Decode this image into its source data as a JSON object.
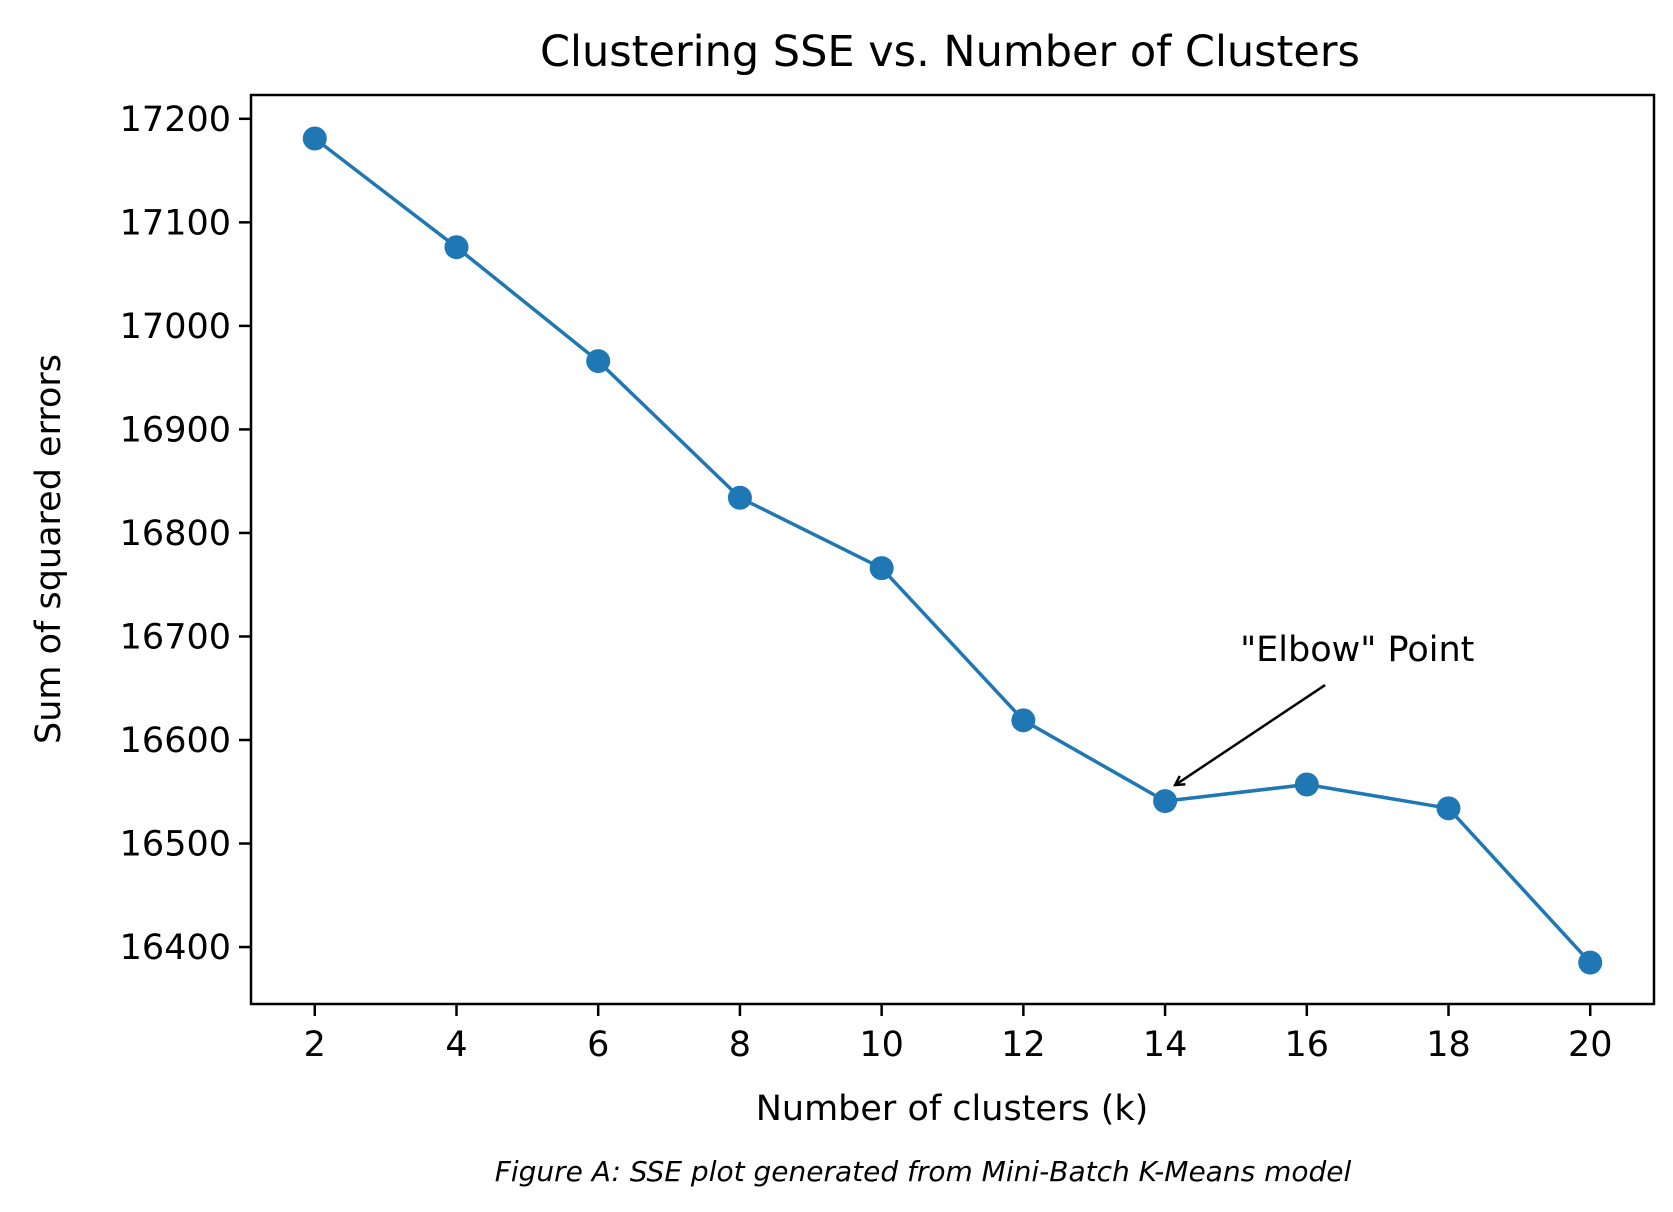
{
  "chart_data": {
    "type": "line",
    "title": "Clustering SSE vs. Number of Clusters",
    "xlabel": "Number of clusters (k)",
    "ylabel": "Sum of squared errors",
    "x": [
      2,
      4,
      6,
      8,
      10,
      12,
      14,
      16,
      18,
      20
    ],
    "series": [
      {
        "values": [
          17181,
          17076,
          16966,
          16834,
          16766,
          16619,
          16541,
          16557,
          16534,
          16385
        ],
        "color": "#1f77b4",
        "marker": "circle"
      }
    ],
    "xlim": [
      1.1,
      20.9
    ],
    "ylim": [
      16345,
      17223
    ],
    "xticks": [
      2,
      4,
      6,
      8,
      10,
      12,
      14,
      16,
      18,
      20
    ],
    "yticks": [
      16400,
      16500,
      16600,
      16700,
      16800,
      16900,
      17000,
      17100,
      17200
    ],
    "grid": false,
    "legend": "none",
    "annotation": {
      "text": "\"Elbow\" Point",
      "x": 14,
      "y": 16541
    }
  },
  "caption": "Figure A: SSE plot generated from Mini-Batch K-Means model"
}
